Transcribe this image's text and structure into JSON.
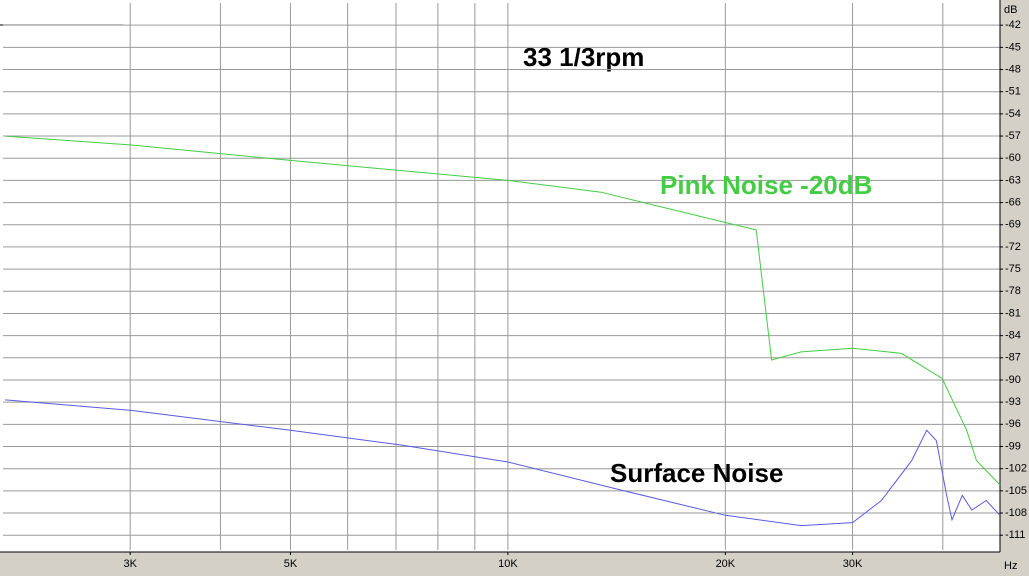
{
  "chart_data": {
    "type": "line",
    "title": "33 1/3rpm",
    "x_unit": "Hz",
    "y_unit": "dB",
    "xscale": "log",
    "xlim": [
      2000,
      48000
    ],
    "xticks": [
      {
        "value": 3000,
        "label": "3K"
      },
      {
        "value": 5000,
        "label": "5K"
      },
      {
        "value": 10000,
        "label": "10K"
      },
      {
        "value": 20000,
        "label": "20K"
      },
      {
        "value": 30000,
        "label": "30K"
      }
    ],
    "xminor": [
      4000,
      6000,
      7000,
      8000,
      9000,
      40000
    ],
    "ylim": [
      -113,
      -39
    ],
    "yticks": [
      -42,
      -45,
      -48,
      -51,
      -54,
      -57,
      -60,
      -63,
      -66,
      -69,
      -72,
      -75,
      -78,
      -81,
      -84,
      -87,
      -90,
      -93,
      -96,
      -99,
      -102,
      -105,
      -108,
      -111
    ],
    "grid": true,
    "series": [
      {
        "name": "Pink Noise -20dB",
        "color": "#44cc44",
        "x": [
          2014,
          3000,
          5000,
          10000,
          13460,
          20000,
          22070,
          23180,
          25470,
          30000,
          35080,
          39920,
          43160,
          44530,
          48000
        ],
        "values": [
          -57.0,
          -58.2,
          -60.3,
          -63.0,
          -64.6,
          -68.7,
          -69.7,
          -87.3,
          -86.2,
          -85.7,
          -86.4,
          -89.8,
          -96.8,
          -100.9,
          -104.2
        ]
      },
      {
        "name": "Surface Noise",
        "color": "#5a5ae0",
        "x": [
          2014,
          3000,
          5000,
          7112,
          10000,
          14350,
          20000,
          25470,
          30000,
          32890,
          36220,
          38000,
          39190,
          40490,
          41190,
          42560,
          43880,
          45930,
          48000
        ],
        "values": [
          -92.7,
          -94.1,
          -96.8,
          -98.8,
          -101.1,
          -104.9,
          -108.3,
          -109.7,
          -109.3,
          -106.3,
          -100.9,
          -96.8,
          -98.2,
          -105.6,
          -108.9,
          -105.6,
          -107.6,
          -106.3,
          -108.3
        ]
      }
    ]
  }
}
